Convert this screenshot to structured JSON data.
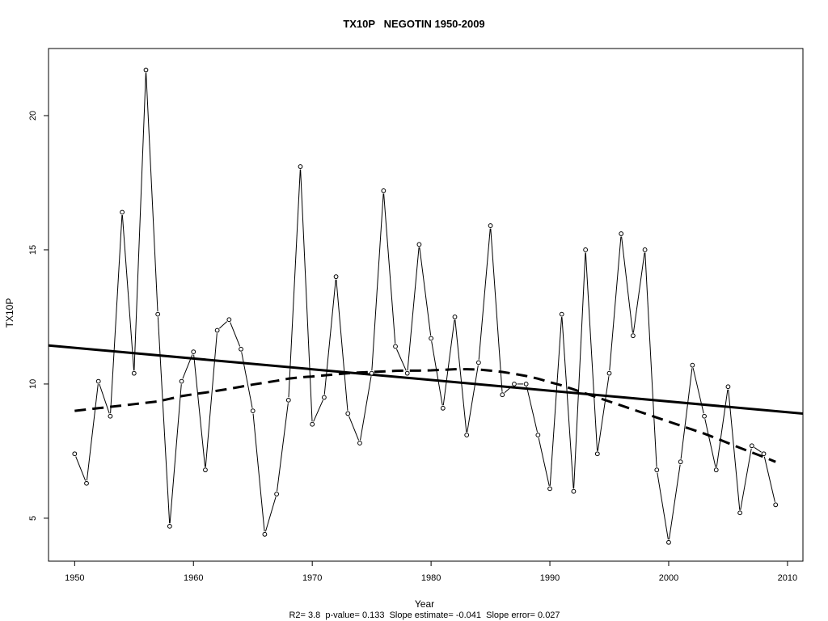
{
  "chart_data": {
    "type": "line",
    "title": "TX10P   NEGOTIN 1950-2009",
    "xlabel": "Year",
    "ylabel": "TX10P",
    "footnote": "R2= 3.8  p-value= 0.133  Slope estimate= -0.041  Slope error= 0.027",
    "xlim": [
      1947.8,
      2011.3
    ],
    "ylim": [
      3.4,
      22.5
    ],
    "x_ticks": [
      1950,
      1960,
      1970,
      1980,
      1990,
      2000,
      2010
    ],
    "y_ticks": [
      5,
      10,
      15,
      20
    ],
    "x": [
      1950,
      1951,
      1952,
      1953,
      1954,
      1955,
      1956,
      1957,
      1958,
      1959,
      1960,
      1961,
      1962,
      1963,
      1964,
      1965,
      1966,
      1967,
      1968,
      1969,
      1970,
      1971,
      1972,
      1973,
      1974,
      1975,
      1976,
      1977,
      1978,
      1979,
      1980,
      1981,
      1982,
      1983,
      1984,
      1985,
      1986,
      1987,
      1988,
      1989,
      1990,
      1991,
      1992,
      1993,
      1994,
      1995,
      1996,
      1997,
      1998,
      1999,
      2000,
      2001,
      2002,
      2003,
      2004,
      2005,
      2006,
      2007,
      2008,
      2009
    ],
    "series": [
      {
        "style": "points-connected",
        "values": [
          7.4,
          6.3,
          10.1,
          8.8,
          16.4,
          10.4,
          21.7,
          12.6,
          4.7,
          10.1,
          11.2,
          6.8,
          12.0,
          12.4,
          11.3,
          9.0,
          4.4,
          5.9,
          9.4,
          18.1,
          8.5,
          9.5,
          14.0,
          8.9,
          7.8,
          10.4,
          17.2,
          11.4,
          10.4,
          15.2,
          11.7,
          9.1,
          12.5,
          8.1,
          10.8,
          15.9,
          9.6,
          10.0,
          10.0,
          8.1,
          6.1,
          12.6,
          6.0,
          15.0,
          7.4,
          10.4,
          15.6,
          11.8,
          15.0,
          6.8,
          4.1,
          7.1,
          10.7,
          8.8,
          6.8,
          9.9,
          5.2,
          7.7,
          7.4,
          5.5
        ]
      },
      {
        "style": "solid-linear-trend",
        "values": [
          11.35,
          11.31,
          11.27,
          11.23,
          11.19,
          11.15,
          11.11,
          11.07,
          11.03,
          10.99,
          10.95,
          10.91,
          10.87,
          10.83,
          10.79,
          10.75,
          10.71,
          10.67,
          10.63,
          10.59,
          10.55,
          10.51,
          10.47,
          10.43,
          10.39,
          10.35,
          10.31,
          10.27,
          10.23,
          10.19,
          10.15,
          10.11,
          10.07,
          10.03,
          9.99,
          9.95,
          9.91,
          9.87,
          9.83,
          9.79,
          9.75,
          9.71,
          9.67,
          9.63,
          9.59,
          9.55,
          9.51,
          9.47,
          9.43,
          9.39,
          9.35,
          9.31,
          9.27,
          9.23,
          9.19,
          9.15,
          9.11,
          9.07,
          9.03,
          8.99
        ]
      },
      {
        "style": "dashed-smooth",
        "values": [
          9.0,
          9.05,
          9.1,
          9.15,
          9.2,
          9.25,
          9.3,
          9.35,
          9.45,
          9.55,
          9.62,
          9.68,
          9.75,
          9.82,
          9.9,
          9.98,
          10.05,
          10.12,
          10.2,
          10.25,
          10.28,
          10.32,
          10.36,
          10.4,
          10.43,
          10.45,
          10.47,
          10.49,
          10.5,
          10.5,
          10.51,
          10.53,
          10.55,
          10.55,
          10.54,
          10.5,
          10.45,
          10.38,
          10.3,
          10.2,
          10.07,
          9.95,
          9.8,
          9.65,
          9.5,
          9.35,
          9.2,
          9.05,
          8.9,
          8.75,
          8.6,
          8.45,
          8.3,
          8.15,
          7.98,
          7.8,
          7.62,
          7.45,
          7.28,
          7.1
        ]
      }
    ],
    "grid": false,
    "legend": "none"
  }
}
